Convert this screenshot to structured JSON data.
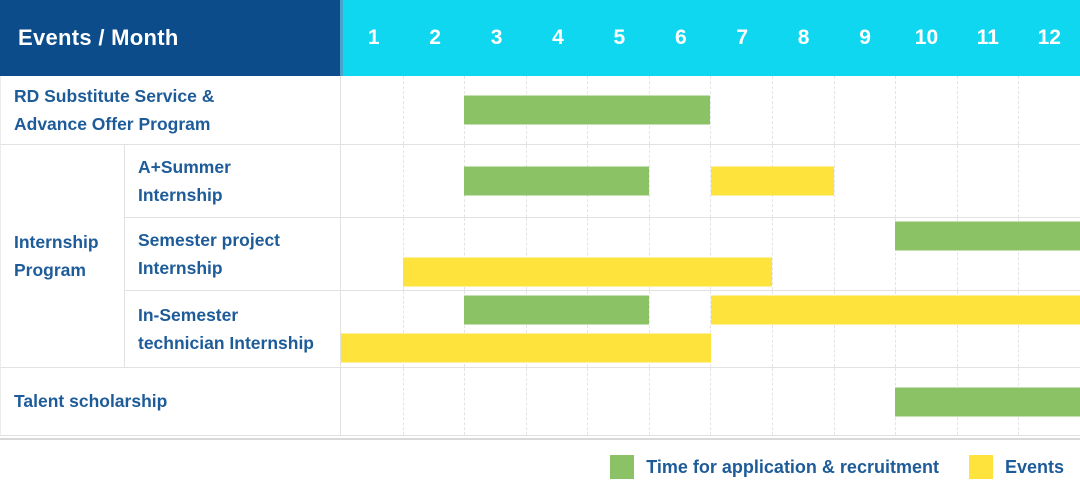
{
  "header": {
    "label": "Events / Month",
    "months": [
      "1",
      "2",
      "3",
      "4",
      "5",
      "6",
      "7",
      "8",
      "9",
      "10",
      "11",
      "12"
    ]
  },
  "colors": {
    "header_bg": "#0c4c8b",
    "month_header_bg": "#10d7f0",
    "label_text": "#1e5c99",
    "green": "#8bc266",
    "yellow": "#fde33c"
  },
  "legend": [
    {
      "color": "green",
      "label": "Time for application & recruitment"
    },
    {
      "color": "yellow",
      "label": "Events"
    }
  ],
  "chart_data": {
    "type": "gantt",
    "title": "Events / Month",
    "x_axis": {
      "label": "Month",
      "ticks": [
        1,
        2,
        3,
        4,
        5,
        6,
        7,
        8,
        9,
        10,
        11,
        12
      ]
    },
    "legend_position": "bottom-right",
    "bar_meaning": {
      "green": "Time for application & recruitment",
      "yellow": "Events"
    },
    "rows": [
      {
        "group": "",
        "label": "RD Substitute Service &\nAdvance Offer Program",
        "lanes": [
          [
            {
              "type": "green",
              "start": 3,
              "end": 7
            }
          ]
        ]
      },
      {
        "group": "Internship\nProgram",
        "label": "A+Summer\nInternship",
        "lanes": [
          [
            {
              "type": "green",
              "start": 3,
              "end": 6
            },
            {
              "type": "yellow",
              "start": 7,
              "end": 9
            }
          ]
        ]
      },
      {
        "group": "Internship\nProgram",
        "label": "Semester project\nInternship",
        "lanes": [
          [
            {
              "type": "green",
              "start": 10,
              "end": 13
            }
          ],
          [
            {
              "type": "yellow",
              "start": 2,
              "end": 8
            }
          ]
        ]
      },
      {
        "group": "Internship\nProgram",
        "label": "In-Semester\ntechnician Internship",
        "lanes": [
          [
            {
              "type": "green",
              "start": 3,
              "end": 6
            },
            {
              "type": "yellow",
              "start": 7,
              "end": 13
            }
          ],
          [
            {
              "type": "yellow",
              "start": 1,
              "end": 7
            }
          ]
        ]
      },
      {
        "group": "",
        "label": "Talent scholarship",
        "lanes": [
          [
            {
              "type": "green",
              "start": 10,
              "end": 13
            }
          ]
        ]
      }
    ]
  }
}
